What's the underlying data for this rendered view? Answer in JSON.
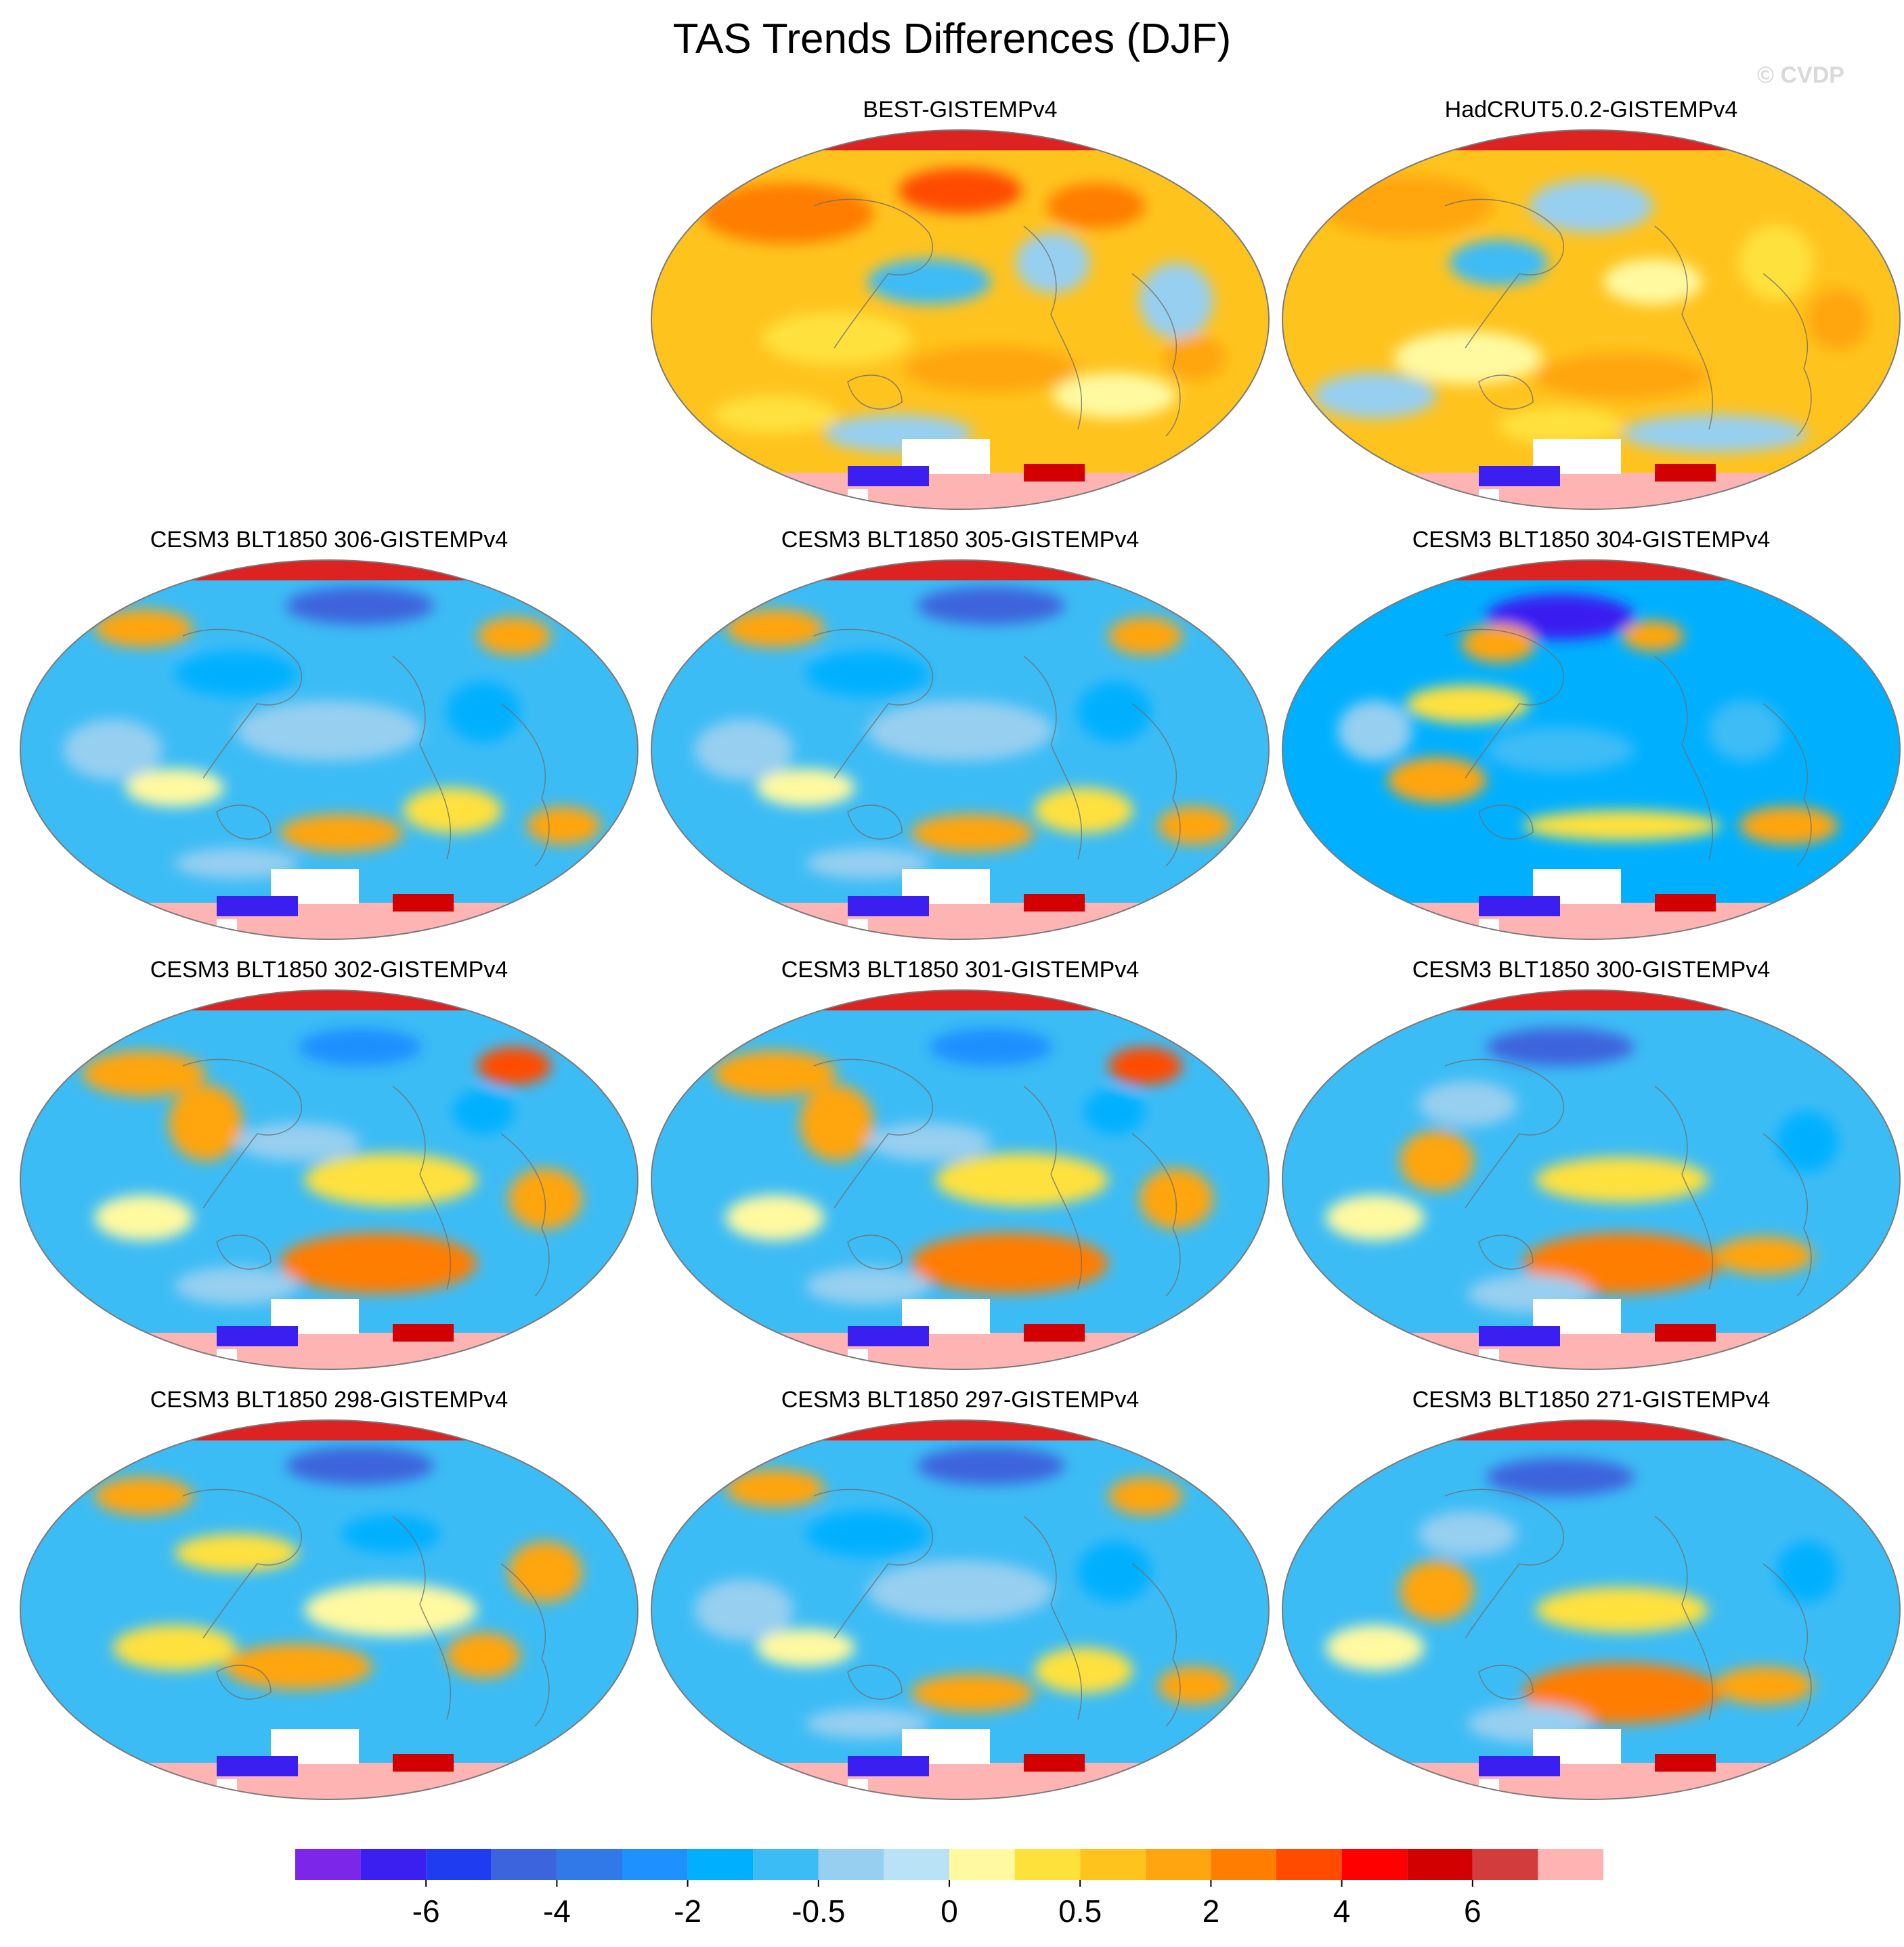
{
  "title": "TAS Trends Differences (DJF)",
  "watermark": "© CVDP",
  "panels": [
    {
      "title": "BEST-GISTEMPv4",
      "style": "warm"
    },
    {
      "title": "HadCRUT5.0.2-GISTEMPv4",
      "style": "warm2"
    },
    {
      "title": "CESM3 BLT1850 306-GISTEMPv4",
      "style": "cool"
    },
    {
      "title": "CESM3 BLT1850 305-GISTEMPv4",
      "style": "cool"
    },
    {
      "title": "CESM3 BLT1850 304-GISTEMPv4",
      "style": "cool2"
    },
    {
      "title": "CESM3 BLT1850 302-GISTEMPv4",
      "style": "mixed"
    },
    {
      "title": "CESM3 BLT1850 301-GISTEMPv4",
      "style": "mixed"
    },
    {
      "title": "CESM3 BLT1850 300-GISTEMPv4",
      "style": "mixed2"
    },
    {
      "title": "CESM3 BLT1850 298-GISTEMPv4",
      "style": "cool3"
    },
    {
      "title": "CESM3 BLT1850 297-GISTEMPv4",
      "style": "cool"
    },
    {
      "title": "CESM3 BLT1850 271-GISTEMPv4",
      "style": "mixed2"
    }
  ],
  "colorbar": {
    "colors": [
      "#7b26e8",
      "#3b1ef0",
      "#1f3cf0",
      "#3c64dc",
      "#2f7ae8",
      "#1e90ff",
      "#00b0ff",
      "#3cbcf5",
      "#96cff0",
      "#b9e2f6",
      "#fff9a0",
      "#ffe13c",
      "#ffc31e",
      "#ffa50f",
      "#ff7d00",
      "#ff4b00",
      "#ff0000",
      "#d20000",
      "#d23c3c",
      "#ffb4b4"
    ],
    "tick_labels": [
      "-6",
      "-4",
      "-2",
      "-0.5",
      "0",
      "0.5",
      "2",
      "4",
      "6"
    ]
  },
  "colors": {
    "land_outline": "#6e6e6e",
    "frame": "#7a7a7a",
    "missing": "#ffffff",
    "antarctic_pink": "#ffb4b4",
    "arctic_red": "#dd2222"
  }
}
